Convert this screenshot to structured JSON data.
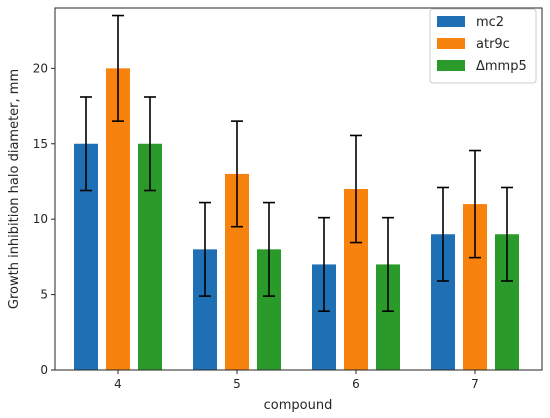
{
  "chart_data": {
    "type": "bar",
    "xlabel": "compound",
    "ylabel": "Growth inhibition halo diameter, mm",
    "categories": [
      "4",
      "5",
      "6",
      "7"
    ],
    "ylim": [
      0,
      24
    ],
    "yticks": [
      0,
      5,
      10,
      15,
      20
    ],
    "series": [
      {
        "name": "mc2",
        "color": "#1f6fb5",
        "values": [
          15,
          8,
          7,
          9
        ],
        "errors": [
          3.1,
          3.1,
          3.1,
          3.1
        ]
      },
      {
        "name": "atr9c",
        "color": "#f7830e",
        "values": [
          20,
          13,
          12,
          11
        ],
        "errors": [
          3.5,
          3.5,
          3.55,
          3.55
        ]
      },
      {
        "name": "Δmmp5",
        "color": "#2a9a2a",
        "values": [
          15,
          8,
          7,
          9
        ],
        "errors": [
          3.1,
          3.1,
          3.1,
          3.1
        ]
      }
    ],
    "grid": false,
    "legend": "top-right"
  }
}
